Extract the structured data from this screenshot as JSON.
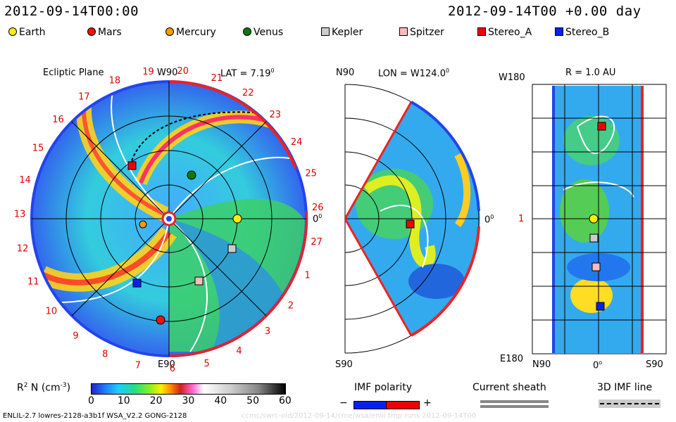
{
  "header": {
    "date_left": "2012-09-14T00:00",
    "date_right": "2012-09-14T00 +0.00 day"
  },
  "legend": [
    {
      "label": "Earth",
      "color": "#ffee00",
      "shape": "circle"
    },
    {
      "label": "Mars",
      "color": "#ee1111",
      "shape": "circle"
    },
    {
      "label": "Mercury",
      "color": "#ff9900",
      "shape": "circle"
    },
    {
      "label": "Venus",
      "color": "#117711",
      "shape": "circle"
    },
    {
      "label": "Kepler",
      "color": "#cccccc",
      "shape": "square"
    },
    {
      "label": "Spitzer",
      "color": "#ffbbbb",
      "shape": "square"
    },
    {
      "label": "Stereo_A",
      "color": "#ee0000",
      "shape": "square"
    },
    {
      "label": "Stereo_B",
      "color": "#0022ee",
      "shape": "square"
    }
  ],
  "panel1": {
    "title": "Ecliptic Plane",
    "lat_label": "LAT = 7.19",
    "deg": "0",
    "top_label": "W90",
    "bottom_label": "E90",
    "right_label": "0",
    "carrington_numbers": [
      "19",
      "20",
      "21",
      "22",
      "23",
      "24",
      "25",
      "26",
      "27",
      "1",
      "2",
      "3",
      "4",
      "5",
      "6",
      "7",
      "8",
      "9",
      "10",
      "11",
      "12",
      "13",
      "14",
      "15",
      "16",
      "17",
      "18"
    ]
  },
  "panel2": {
    "lon_label": "LON = W124.0",
    "deg": "0",
    "top_label": "N90",
    "bottom_label": "S90",
    "right_label": "0"
  },
  "panel3": {
    "r_label": "R = 1.0 AU",
    "top_left": "W180",
    "bottom_left": "E180",
    "mid_left": "1",
    "bottom_n": "N90",
    "bottom_mid": "0",
    "bottom_s": "S90"
  },
  "colorbar": {
    "label": "R",
    "label_sup": "2",
    "label_rest": " N (cm",
    "label_exp": "-3",
    "label_end": ")",
    "ticks": [
      "0",
      "10",
      "20",
      "30",
      "40",
      "50",
      "60"
    ]
  },
  "imf": {
    "title": "IMF polarity",
    "minus": "−",
    "plus": "+",
    "sheath_title": "Current sheath",
    "line_title": "3D IMF line"
  },
  "footer": {
    "left": "ENLIL-2.7 lowres-2128-a3b1f WSA_V2.2 GONG-2128",
    "right": "ccmc/swrc-old/2012-09-14/cme/wsa/enlil tmp runs 2012-09-14T00"
  }
}
